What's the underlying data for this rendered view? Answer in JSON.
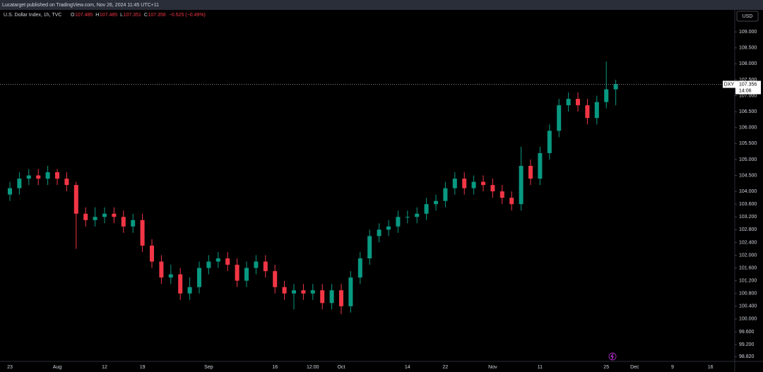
{
  "header": {
    "publisher": "Lucatarget published on TradingView.com, Nov 26, 2024 11:45 UTC+11"
  },
  "chart_data": {
    "type": "candlestick",
    "symbol": "U.S. Dollar Index, 1h, TVC",
    "ohlc_legend": [
      {
        "key": "O",
        "value": "107.485"
      },
      {
        "key": "H",
        "value": "107.485"
      },
      {
        "key": "L",
        "value": "107.351"
      },
      {
        "key": "C",
        "value": "107.356"
      }
    ],
    "change": "−0.525 (−0.49%)",
    "currency": "USD",
    "ticker": "DXY",
    "last_price": {
      "value": 107.356,
      "label": "107.356"
    },
    "countdown": "14:06",
    "up_color": "#089981",
    "down_color": "#f23645",
    "categories": [
      "23",
      null,
      null,
      null,
      null,
      "Aug",
      null,
      null,
      null,
      null,
      "12",
      null,
      null,
      null,
      "19",
      null,
      null,
      null,
      null,
      null,
      null,
      "Sep",
      null,
      null,
      null,
      null,
      null,
      null,
      "16",
      null,
      null,
      null,
      "12:00",
      null,
      null,
      "Oct",
      null,
      null,
      null,
      null,
      null,
      null,
      "14",
      null,
      null,
      null,
      "22",
      null,
      null,
      null,
      null,
      "Nov",
      null,
      null,
      null,
      null,
      "11",
      null,
      null,
      null,
      null,
      null,
      null,
      "25",
      null,
      null,
      "Dec",
      null,
      null,
      null,
      "9",
      null,
      null,
      null,
      "16",
      null
    ],
    "open": [
      103.9,
      104.1,
      104.4,
      104.5,
      104.4,
      104.6,
      104.4,
      104.2,
      103.3,
      103.1,
      103.2,
      103.3,
      103.2,
      102.9,
      103.1,
      102.3,
      101.8,
      101.3,
      101.4,
      100.8,
      101.0,
      101.6,
      101.8,
      101.9,
      101.7,
      101.2,
      101.6,
      101.8,
      101.5,
      101.0,
      100.8,
      100.9,
      100.8,
      100.9,
      100.5,
      100.9,
      100.4,
      101.3,
      101.9,
      102.6,
      102.8,
      102.9,
      103.2,
      103.2,
      103.3,
      103.6,
      103.7,
      104.1,
      104.4,
      104.1,
      104.3,
      104.2,
      104.0,
      103.8,
      103.6,
      104.8,
      104.4,
      105.2,
      105.9,
      106.7,
      106.9,
      106.7,
      106.3,
      106.8,
      107.2,
      null,
      null,
      null,
      null,
      null,
      null,
      null,
      null,
      null,
      null,
      null
    ],
    "high": [
      104.3,
      104.6,
      104.7,
      104.7,
      104.8,
      104.7,
      104.6,
      104.3,
      103.5,
      103.5,
      103.5,
      103.5,
      103.4,
      103.3,
      103.3,
      102.5,
      102.0,
      101.7,
      101.6,
      101.3,
      101.8,
      102.0,
      102.1,
      102.1,
      101.9,
      101.8,
      102.0,
      102.0,
      101.7,
      101.2,
      101.1,
      101.1,
      101.1,
      101.1,
      101.1,
      101.1,
      101.5,
      102.1,
      102.8,
      103.0,
      103.1,
      103.4,
      103.4,
      103.5,
      103.8,
      103.9,
      104.3,
      104.6,
      104.6,
      104.5,
      104.5,
      104.4,
      104.2,
      104.0,
      105.4,
      105.0,
      105.4,
      106.1,
      106.9,
      107.1,
      107.1,
      106.9,
      107.0,
      108.07,
      107.5,
      null,
      null,
      null,
      null,
      null,
      null,
      null,
      null,
      null,
      null,
      null
    ],
    "low": [
      103.7,
      103.9,
      104.2,
      104.2,
      104.2,
      104.2,
      104.0,
      102.2,
      102.9,
      102.9,
      103.0,
      103.0,
      102.7,
      102.7,
      102.1,
      101.6,
      101.1,
      101.1,
      100.6,
      100.6,
      100.8,
      101.4,
      101.6,
      101.5,
      101.0,
      101.0,
      101.4,
      101.3,
      100.8,
      100.6,
      100.3,
      100.6,
      100.6,
      100.3,
      100.3,
      100.15,
      100.2,
      101.1,
      101.7,
      102.4,
      102.6,
      102.7,
      103.0,
      103.0,
      103.1,
      103.4,
      103.5,
      103.9,
      103.9,
      103.9,
      104.0,
      103.8,
      103.6,
      103.4,
      103.4,
      104.2,
      104.2,
      105.0,
      105.7,
      106.5,
      106.5,
      106.1,
      106.1,
      106.6,
      106.7,
      null,
      null,
      null,
      null,
      null,
      null,
      null,
      null,
      null,
      null,
      null
    ],
    "close": [
      104.1,
      104.4,
      104.5,
      104.4,
      104.6,
      104.4,
      104.2,
      103.3,
      103.1,
      103.2,
      103.3,
      103.2,
      102.9,
      103.1,
      102.3,
      101.8,
      101.3,
      101.4,
      100.8,
      101.0,
      101.6,
      101.8,
      101.9,
      101.7,
      101.2,
      101.6,
      101.8,
      101.5,
      101.0,
      100.8,
      100.9,
      100.8,
      100.9,
      100.5,
      100.9,
      100.4,
      101.3,
      101.9,
      102.6,
      102.8,
      102.9,
      103.2,
      103.2,
      103.3,
      103.6,
      103.7,
      104.1,
      104.4,
      104.1,
      104.3,
      104.2,
      104.0,
      103.8,
      103.6,
      104.8,
      104.4,
      105.2,
      105.9,
      106.7,
      106.9,
      106.7,
      106.3,
      106.8,
      107.2,
      107.36,
      null,
      null,
      null,
      null,
      null,
      null,
      null,
      null,
      null,
      null,
      null
    ],
    "ylim": [
      98.67,
      109.69
    ],
    "yticks": [
      {
        "value": 109,
        "label": "109.000"
      },
      {
        "value": 108.5,
        "label": "108.500"
      },
      {
        "value": 108,
        "label": "108.000"
      },
      {
        "value": 107.5,
        "label": "107.500"
      },
      {
        "value": 107,
        "label": "107.000"
      },
      {
        "value": 106.5,
        "label": "106.500"
      },
      {
        "value": 106,
        "label": "106.000"
      },
      {
        "value": 105.5,
        "label": "105.500"
      },
      {
        "value": 105,
        "label": "105.000"
      },
      {
        "value": 104.5,
        "label": "104.500"
      },
      {
        "value": 104,
        "label": "104.000"
      },
      {
        "value": 103.6,
        "label": "103.600"
      },
      {
        "value": 103.2,
        "label": "103.200"
      },
      {
        "value": 102.8,
        "label": "102.800"
      },
      {
        "value": 102.4,
        "label": "102.400"
      },
      {
        "value": 102,
        "label": "102.000"
      },
      {
        "value": 101.6,
        "label": "101.600"
      },
      {
        "value": 101.2,
        "label": "101.200"
      },
      {
        "value": 100.8,
        "label": "100.800"
      },
      {
        "value": 100.4,
        "label": "100.400"
      },
      {
        "value": 100,
        "label": "100.000"
      },
      {
        "value": 99.6,
        "label": "99.600"
      },
      {
        "value": 99.2,
        "label": "99.200"
      },
      {
        "value": 98.82,
        "label": "98.820"
      }
    ]
  }
}
